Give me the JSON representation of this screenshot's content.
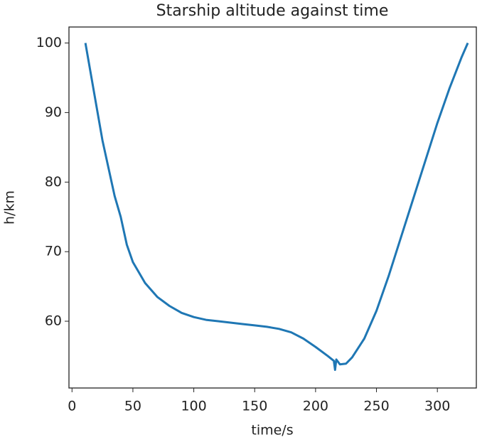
{
  "chart_data": {
    "type": "line",
    "title": "Starship altitude against time",
    "x_label": "time/s",
    "y_label": "h/km",
    "xlim": [
      -2.5,
      332
    ],
    "ylim": [
      50.4,
      102.3
    ],
    "xticks": [
      0,
      50,
      100,
      150,
      200,
      250,
      300
    ],
    "yticks": [
      60,
      70,
      80,
      90,
      100
    ],
    "x": [
      11,
      15,
      20,
      25,
      30,
      35,
      40,
      45,
      50,
      60,
      70,
      80,
      90,
      100,
      110,
      120,
      130,
      140,
      150,
      160,
      170,
      180,
      190,
      200,
      210,
      215,
      216,
      217,
      220,
      225,
      230,
      240,
      250,
      260,
      270,
      280,
      290,
      300,
      310,
      320,
      325
    ],
    "series": [
      {
        "color": "#1f77b4",
        "values": [
          100,
          96,
          91,
          86,
          82,
          78,
          75,
          71,
          68.5,
          65.5,
          63.5,
          62.2,
          61.2,
          60.6,
          60.2,
          60,
          59.8,
          59.6,
          59.4,
          59.2,
          58.9,
          58.4,
          57.5,
          56.3,
          55,
          54.3,
          53,
          54.5,
          53.8,
          53.9,
          54.8,
          57.5,
          61.5,
          66.5,
          72,
          77.5,
          83,
          88.5,
          93.5,
          98,
          100
        ]
      }
    ]
  }
}
